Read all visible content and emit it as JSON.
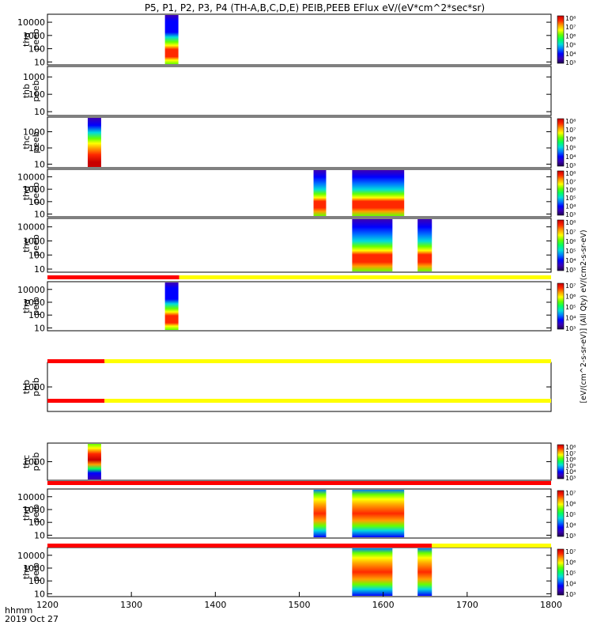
{
  "title": "P5, P1, P2, P3, P4 (TH-A,B,C,D,E) PEIB,PEEB EFlux eV/(eV*cm^2*sec*sr)",
  "time_label": "hhmm",
  "date_label": "2019 Oct 27",
  "right_axis_text": "[eV/(cm^2-s-sr-eV)] (All Qty) eV/(cm2-s-sr-eV)",
  "colors": {
    "flag_red": "#ff0000",
    "flag_yellow": "#ffff00",
    "colorscale": [
      "#1e0050",
      "#3c00b4",
      "#0000ff",
      "#0078ff",
      "#00dcdc",
      "#00ff64",
      "#64ff00",
      "#ffff00",
      "#ffa000",
      "#ff2800",
      "#c80000"
    ]
  },
  "chart_data": {
    "type": "heatmap",
    "x_range": [
      1200,
      1800
    ],
    "x_ticks": [
      "1200",
      "1300",
      "1400",
      "1500",
      "1600",
      "1700",
      "1800"
    ],
    "flag_bars": [
      {
        "after_panel": "the_peeb",
        "red_until": 1357,
        "yellow_until": 1800
      },
      {
        "after_panel": "thb_peib",
        "red_until": 1268,
        "yellow_until": 1800
      },
      {
        "after_panel": "thc_peib",
        "red_until": 1268,
        "yellow_until": 1800
      },
      {
        "after_panel": "thd_peib",
        "red_until": 1800,
        "yellow_until": 1800
      },
      {
        "after_panel": "the_peib",
        "red_until": 1658,
        "yellow_until": 1800
      }
    ],
    "panels": [
      {
        "id": "tha_peeb",
        "ylabel": [
          "tha",
          "peeb"
        ],
        "ylim": [
          6,
          40000
        ],
        "yticks": [
          "10",
          "100",
          "1000",
          "10000"
        ],
        "colorbar": [
          "10³",
          "10⁴",
          "10⁵",
          "10⁶",
          "10⁷",
          "10⁸"
        ],
        "blocks": [
          {
            "x": [
              1340,
              1356
            ],
            "profile": "dense"
          }
        ]
      },
      {
        "id": "thb_peeb",
        "ylabel": [
          "thb",
          "peeb"
        ],
        "ylim": [
          6,
          4000
        ],
        "yticks": [
          "10",
          "100",
          "1000"
        ],
        "colorbar": [],
        "blocks": []
      },
      {
        "id": "thc_peeb",
        "ylabel": [
          "thc",
          "peeb"
        ],
        "ylim": [
          6,
          8000
        ],
        "yticks": [
          "10",
          "100",
          "1000"
        ],
        "colorbar": [
          "10³",
          "10⁴",
          "10⁵",
          "10⁶",
          "10⁷",
          "10⁸"
        ],
        "blocks": [
          {
            "x": [
              1248,
              1264
            ],
            "profile": "full"
          }
        ]
      },
      {
        "id": "thd_peeb",
        "ylabel": [
          "thd",
          "peeb"
        ],
        "ylim": [
          6,
          40000
        ],
        "yticks": [
          "10",
          "100",
          "1000",
          "10000"
        ],
        "colorbar": [
          "10³",
          "10⁴",
          "10⁵",
          "10⁶",
          "10⁷",
          "10⁸"
        ],
        "blocks": [
          {
            "x": [
              1517,
              1532
            ],
            "profile": "low"
          },
          {
            "x": [
              1563,
              1625
            ],
            "profile": "low"
          }
        ]
      },
      {
        "id": "the_peeb",
        "ylabel": [
          "the",
          "peeb"
        ],
        "ylim": [
          6,
          40000
        ],
        "yticks": [
          "10",
          "100",
          "1000",
          "10000"
        ],
        "colorbar": [
          "10³",
          "10⁴",
          "10⁵",
          "10⁶",
          "10⁷",
          "10⁸"
        ],
        "blocks": [
          {
            "x": [
              1563,
              1611
            ],
            "profile": "low"
          },
          {
            "x": [
              1641,
              1658
            ],
            "profile": "low"
          }
        ]
      },
      {
        "id": "tha_peib",
        "ylabel": [
          "tha",
          "peib"
        ],
        "ylim": [
          6,
          40000
        ],
        "yticks": [
          "10",
          "100",
          "1000",
          "10000"
        ],
        "colorbar": [
          "10³",
          "10⁴",
          "10⁵",
          "10⁶",
          "10⁷"
        ],
        "blocks": [
          {
            "x": [
              1340,
              1356
            ],
            "profile": "dense"
          }
        ]
      },
      {
        "id": "thb_peib",
        "ylabel": [
          "thb",
          "peib"
        ],
        "ylim": [
          200,
          5000
        ],
        "yticks": [
          "1000"
        ],
        "colorbar": [],
        "blocks": []
      },
      {
        "id": "thc_peib",
        "ylabel": [
          "thc",
          "peib"
        ],
        "ylim": [
          200,
          5000
        ],
        "yticks": [
          "1000"
        ],
        "colorbar": [
          "10³",
          "10⁴",
          "10⁵",
          "10⁶",
          "10⁷",
          "10⁸"
        ],
        "blocks": [
          {
            "x": [
              1248,
              1264
            ],
            "profile": "narrow"
          }
        ]
      },
      {
        "id": "thd_peib",
        "ylabel": [
          "thd",
          "peib"
        ],
        "ylim": [
          6,
          40000
        ],
        "yticks": [
          "10",
          "100",
          "1000",
          "10000"
        ],
        "colorbar": [
          "10³",
          "10⁴",
          "10⁵",
          "10⁶",
          "10⁷"
        ],
        "blocks": [
          {
            "x": [
              1517,
              1532
            ],
            "profile": "mid"
          },
          {
            "x": [
              1563,
              1625
            ],
            "profile": "mid"
          }
        ]
      },
      {
        "id": "the_peib",
        "ylabel": [
          "the",
          "peib"
        ],
        "ylim": [
          6,
          40000
        ],
        "yticks": [
          "10",
          "100",
          "1000",
          "10000"
        ],
        "colorbar": [
          "10³",
          "10⁴",
          "10⁵",
          "10⁶",
          "10⁷"
        ],
        "blocks": [
          {
            "x": [
              1563,
              1611
            ],
            "profile": "mid"
          },
          {
            "x": [
              1641,
              1658
            ],
            "profile": "mid"
          }
        ]
      }
    ]
  }
}
